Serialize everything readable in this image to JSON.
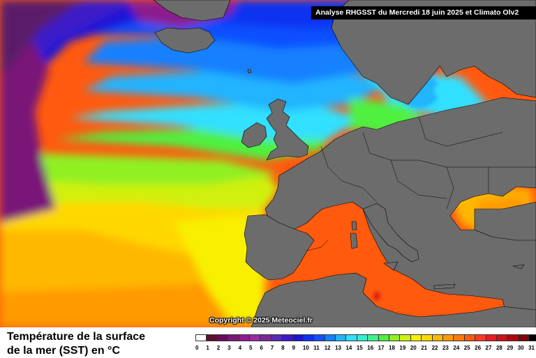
{
  "header": {
    "title": "Analyse RHGSST  du Mercredi 18 juin 2025 et Climato Olv2"
  },
  "copyright": "Copyright © 2025 Meteociel.fr",
  "legend": {
    "title_line1": "Température de la surface",
    "title_line2": "de la mer (SST) en °C",
    "ticks": [
      "0",
      "1",
      "2",
      "3",
      "4",
      "5",
      "6",
      "7",
      "8",
      "9",
      "10",
      "11",
      "12",
      "13",
      "14",
      "15",
      "16",
      "17",
      "18",
      "19",
      "20",
      "21",
      "22",
      "23",
      "24",
      "25",
      "26",
      "27",
      "28",
      "29",
      "30",
      "31"
    ],
    "colors": [
      "#ffffff",
      "#5a1030",
      "#6a0a5a",
      "#7a1878",
      "#8c1c8c",
      "#9a2aa0",
      "#7a2898",
      "#5a2ab0",
      "#3a1ac8",
      "#1a14d8",
      "#1030f0",
      "#1050ff",
      "#1680ff",
      "#20b4ff",
      "#30e0ff",
      "#30f0d0",
      "#40f090",
      "#50f040",
      "#90f020",
      "#d0f010",
      "#f8f000",
      "#ffd800",
      "#ffb800",
      "#ff9a00",
      "#ff7a00",
      "#ff5a10",
      "#ff3a20",
      "#f01820",
      "#d01018",
      "#b00810",
      "#800408",
      "#000000"
    ]
  },
  "colors": {
    "land": "#6c6c6c",
    "ice_sea": "#7a1878",
    "deep_north": "#5a1a6a"
  }
}
